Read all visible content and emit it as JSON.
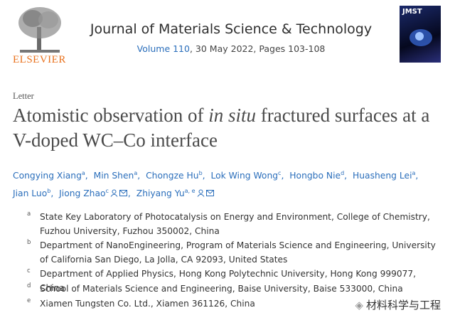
{
  "header": {
    "publisher": "ELSEVIER",
    "journal": "Journal of Materials Science & Technology",
    "volume": "Volume 110",
    "issue_info": ", 30 May 2022, Pages 103-108",
    "cover_label": "JMST"
  },
  "article_type": "Letter",
  "title": {
    "before": "Atomistic observation of ",
    "italic": "in situ",
    "after": " fractured surfaces at a V-doped WC–Co interface"
  },
  "authors": {
    "separator": ",",
    "list": [
      {
        "name": "Congying Xiang",
        "sup": "a"
      },
      {
        "name": "Min Shen",
        "sup": "a"
      },
      {
        "name": "Chongze Hu",
        "sup": "b"
      },
      {
        "name": "Lok Wing Wong",
        "sup": "c"
      },
      {
        "name": "Hongbo Nie",
        "sup": "d"
      },
      {
        "name": "Huasheng Lei",
        "sup": "a"
      },
      {
        "name": "Jian Luo",
        "sup": "b"
      },
      {
        "name": "Jiong Zhao",
        "sup": "c"
      },
      {
        "name": "Zhiyang Yu",
        "sup": "a, e"
      }
    ]
  },
  "affiliations": [
    {
      "label": "a",
      "text": "State Key Laboratory of Photocatalysis on Energy and Environment, College of Chemistry, Fuzhou University, Fuzhou 350002, China"
    },
    {
      "label": "b",
      "text": "Department of NanoEngineering, Program of Materials Science and Engineering, University of California San Diego, La Jolla, CA 92093, United States"
    },
    {
      "label": "c",
      "text": "Department of Applied Physics, Hong Kong Polytechnic University, Hong Kong 999077, China"
    },
    {
      "label": "d",
      "text": "School of Materials Science and Engineering, Baise University, Baise 533000, China"
    },
    {
      "label": "e",
      "text": "Xiamen Tungsten Co. Ltd., Xiamen 361126, China"
    }
  ],
  "watermark": "材料科学与工程"
}
